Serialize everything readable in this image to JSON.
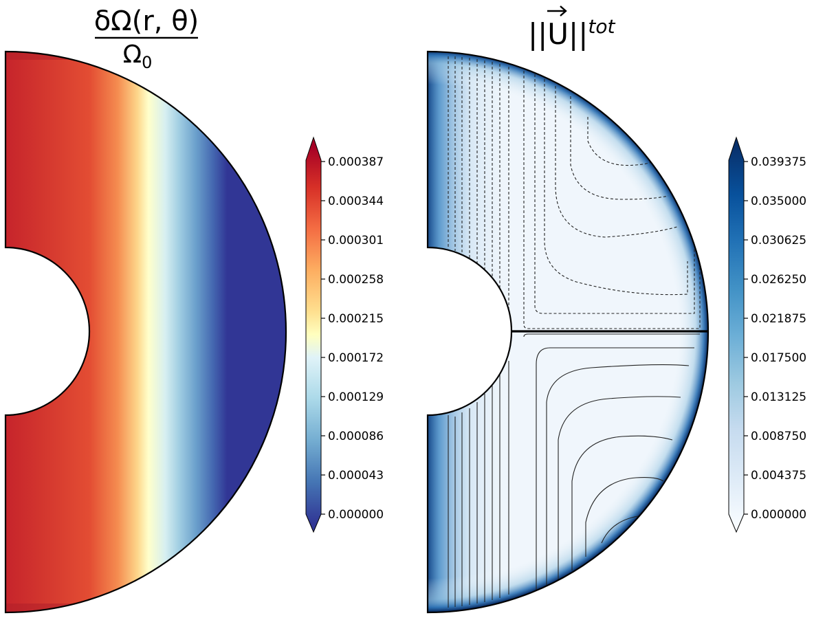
{
  "chart_data": [
    {
      "type": "heatmap",
      "panel": "left",
      "title": {
        "numerator": "δΩ(r, θ)",
        "denominator": "Ω",
        "denominator_sub": "0"
      },
      "domain": "meridional half-annulus (spherical shell cross-section)",
      "colormap": "RdYlBu_r",
      "colorbar_extend": "both",
      "colorbar_ticks": [
        "0.000387",
        "0.000344",
        "0.000301",
        "0.000258",
        "0.000215",
        "0.000172",
        "0.000129",
        "0.000086",
        "0.000043",
        "0.000000"
      ],
      "vmin": 0.0,
      "vmax": 0.000387,
      "note_values": "value depends mainly on cylindrical radius: ≈0.000387 near rotation axis, ≈0.000215 at mid-shell, 0 near outer equator"
    },
    {
      "type": "heatmap",
      "panel": "right",
      "title": {
        "text": "||U||",
        "sup": "tot"
      },
      "domain": "meridional half-annulus (spherical shell cross-section)",
      "colormap": "Blues",
      "colorbar_extend": "both",
      "colorbar_ticks": [
        "0.039375",
        "0.035000",
        "0.030625",
        "0.026250",
        "0.021875",
        "0.017500",
        "0.013125",
        "0.008750",
        "0.004375",
        "0.000000"
      ],
      "vmin": 0.0,
      "vmax": 0.039375,
      "overlay": "streamline contours: dashed in northern hemisphere, solid in southern hemisphere",
      "note_values": "high values (≈0.039) along rotation axis and outer boundary; low (≈0.001) in interior"
    }
  ]
}
